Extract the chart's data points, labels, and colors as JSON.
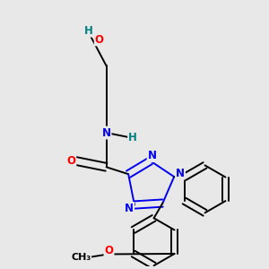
{
  "background_color": "#e8e8e8",
  "atom_colors": {
    "C": "#000000",
    "N": "#0000ee",
    "O": "#ff0000",
    "H": "#008080"
  },
  "bond_color": "#000000",
  "bond_width": 1.4,
  "figsize": [
    3.0,
    3.0
  ],
  "dpi": 100,
  "font_size": 8.5
}
